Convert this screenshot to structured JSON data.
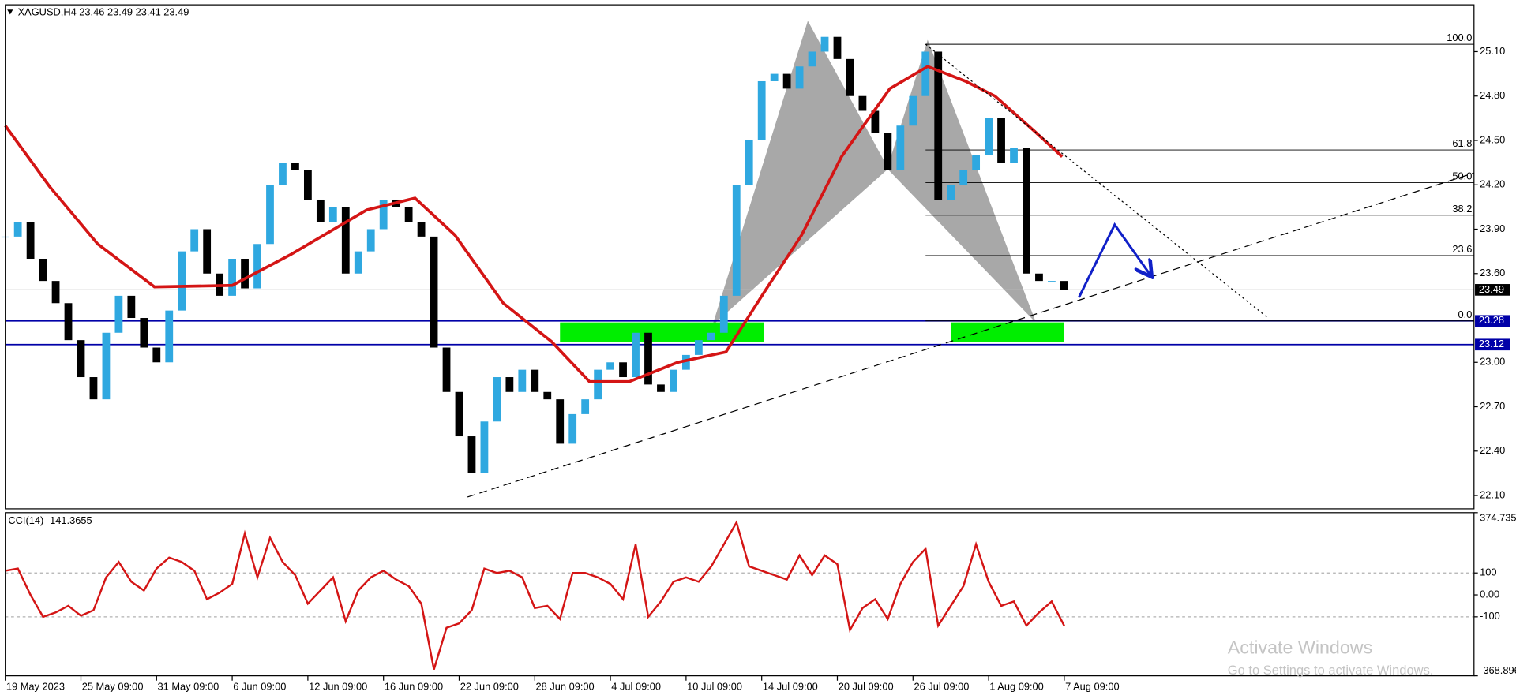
{
  "chart_data": [
    {
      "type": "candlestick",
      "title": "XAGUSD,H4  23.46 23.49 23.41 23.49",
      "x": [
        0,
        6,
        12,
        18,
        24,
        30,
        36,
        42,
        48,
        54,
        60,
        66,
        72,
        78,
        84,
        90,
        96,
        102,
        108,
        114,
        120,
        126,
        132,
        138,
        144,
        150,
        156,
        162,
        168,
        174,
        180,
        186,
        192,
        198,
        204,
        210,
        216,
        222,
        228,
        234,
        240,
        246,
        252,
        258,
        264,
        270,
        276,
        282,
        288,
        294,
        300,
        306,
        312,
        318,
        324,
        330,
        336,
        342,
        348,
        354,
        360,
        366,
        372,
        378,
        384,
        390,
        396,
        402,
        408,
        414,
        420,
        426,
        432,
        438,
        444,
        450,
        456,
        462,
        468,
        474,
        480,
        486,
        492,
        498,
        504
      ],
      "values": [
        23.85,
        23.95,
        23.7,
        23.55,
        23.4,
        23.15,
        22.9,
        22.75,
        23.2,
        23.45,
        23.3,
        23.1,
        23.0,
        23.35,
        23.75,
        23.9,
        23.6,
        23.45,
        23.7,
        23.5,
        23.8,
        24.2,
        24.35,
        24.3,
        24.1,
        23.95,
        24.05,
        23.6,
        23.75,
        23.9,
        24.1,
        24.05,
        23.95,
        23.85,
        23.1,
        22.8,
        22.5,
        22.25,
        22.6,
        22.9,
        22.8,
        22.95,
        22.8,
        22.75,
        22.45,
        22.65,
        22.75,
        22.95,
        23.0,
        22.9,
        23.2,
        22.85,
        22.8,
        22.95,
        23.05,
        23.15,
        23.2,
        23.45,
        24.2,
        24.5,
        24.9,
        24.95,
        24.85,
        25.0,
        25.1,
        25.2,
        25.05,
        24.8,
        24.7,
        24.55,
        24.3,
        24.6,
        24.8,
        25.1,
        24.1,
        24.2,
        24.3,
        24.4,
        24.65,
        24.35,
        24.45,
        23.6,
        23.55,
        23.55,
        23.49
      ],
      "up_color": "#2fa8e0",
      "down_color": "#000000",
      "xlim": [
        0,
        699
      ],
      "xticks": [
        {
          "value": 0,
          "label": "19 May 2023"
        },
        {
          "value": 36,
          "label": "25 May 09:00"
        },
        {
          "value": 72,
          "label": "31 May 09:00"
        },
        {
          "value": 108,
          "label": "6 Jun 09:00"
        },
        {
          "value": 144,
          "label": "12 Jun 09:00"
        },
        {
          "value": 180,
          "label": "16 Jun 09:00"
        },
        {
          "value": 216,
          "label": "22 Jun 09:00"
        },
        {
          "value": 252,
          "label": "28 Jun 09:00"
        },
        {
          "value": 288,
          "label": "4 Jul 09:00"
        },
        {
          "value": 324,
          "label": "10 Jul 09:00"
        },
        {
          "value": 360,
          "label": "14 Jul 09:00"
        },
        {
          "value": 396,
          "label": "20 Jul 09:00"
        },
        {
          "value": 432,
          "label": "26 Jul 09:00"
        },
        {
          "value": 468,
          "label": "1 Aug 09:00"
        },
        {
          "value": 504,
          "label": "7 Aug 09:00"
        }
      ],
      "ylim": [
        22.01,
        25.41
      ],
      "yticks": [
        {
          "value": 25.1,
          "label": "25.10"
        },
        {
          "value": 24.8,
          "label": "24.80"
        },
        {
          "value": 24.5,
          "label": "24.50"
        },
        {
          "value": 24.2,
          "label": "24.20"
        },
        {
          "value": 23.9,
          "label": "23.90"
        },
        {
          "value": 23.6,
          "label": "23.60"
        },
        {
          "value": 23.0,
          "label": "23.00"
        },
        {
          "value": 22.7,
          "label": "22.70"
        },
        {
          "value": 22.4,
          "label": "22.40"
        },
        {
          "value": 22.1,
          "label": "22.10"
        }
      ],
      "ma": {
        "color": "#d41515",
        "x": [
          0,
          21,
          44,
          71,
          108,
          136,
          172,
          195,
          214,
          237,
          260,
          278,
          297,
          320,
          343,
          361,
          379,
          398,
          421,
          439,
          457,
          471,
          490,
          503
        ],
        "values": [
          24.6,
          24.19,
          23.8,
          23.51,
          23.52,
          23.73,
          24.03,
          24.11,
          23.86,
          23.4,
          23.14,
          22.87,
          22.87,
          23.0,
          23.07,
          23.47,
          23.86,
          24.39,
          24.85,
          25.0,
          24.9,
          24.8,
          24.56,
          24.39
        ]
      },
      "hlines": [
        {
          "value": 23.28,
          "label": "23.28",
          "color": "#0000a8"
        },
        {
          "value": 23.12,
          "label": "23.12",
          "color": "#0000a8"
        }
      ],
      "last_price": {
        "value": 23.49,
        "label": "23.49"
      },
      "zones": [
        {
          "x": [
            264,
            361
          ],
          "y": [
            23.14,
            23.27
          ],
          "color": "#00ee00"
        },
        {
          "x": [
            450,
            504
          ],
          "y": [
            23.14,
            23.27
          ],
          "color": "#00ee00"
        }
      ],
      "pattern": {
        "color": "#a8a8a8",
        "x": [
          337,
          382,
          420,
          439,
          490
        ],
        "values": [
          23.26,
          25.3,
          24.31,
          25.17,
          23.28
        ]
      },
      "fib": {
        "high": 25.15,
        "low": 23.28,
        "x_start": 438,
        "levels": [
          {
            "value": 100,
            "label": "100.0"
          },
          {
            "value": 61.8,
            "label": "61.8"
          },
          {
            "value": 50,
            "label": "50.0"
          },
          {
            "value": 38.2,
            "label": "38.2"
          },
          {
            "value": 23.6,
            "label": "23.6"
          },
          {
            "value": 0,
            "label": "0.0"
          }
        ]
      },
      "trendlines": [
        {
          "x": [
            220,
            699
          ],
          "values": [
            22.09,
            24.28
          ],
          "style": "dashed"
        },
        {
          "x": [
            438,
            601
          ],
          "values": [
            25.15,
            23.3
          ],
          "style": "dotted"
        }
      ],
      "arrow": {
        "color": "#1020c8",
        "x": [
          511,
          528,
          545
        ],
        "values": [
          23.44,
          23.93,
          23.59
        ]
      }
    },
    {
      "type": "line",
      "title": "CCI(14) -141.3655",
      "color": "#d41515",
      "x": [
        0,
        6,
        12,
        18,
        24,
        30,
        36,
        42,
        48,
        54,
        60,
        66,
        72,
        78,
        84,
        90,
        96,
        102,
        108,
        114,
        120,
        126,
        132,
        138,
        144,
        150,
        156,
        162,
        168,
        174,
        180,
        186,
        192,
        198,
        204,
        210,
        216,
        222,
        228,
        234,
        240,
        246,
        252,
        258,
        264,
        270,
        276,
        282,
        288,
        294,
        300,
        306,
        312,
        318,
        324,
        330,
        336,
        342,
        348,
        354,
        360,
        366,
        372,
        378,
        384,
        390,
        396,
        402,
        408,
        414,
        420,
        426,
        432,
        438,
        444,
        450,
        456,
        462,
        468,
        474,
        480,
        486,
        492,
        498,
        504
      ],
      "values": [
        110,
        120,
        0,
        -100,
        -80,
        -50,
        -95,
        -70,
        80,
        150,
        60,
        20,
        120,
        170,
        150,
        110,
        -20,
        10,
        50,
        280,
        80,
        260,
        150,
        90,
        -40,
        20,
        80,
        -120,
        20,
        80,
        110,
        70,
        40,
        -40,
        -340,
        -150,
        -130,
        -70,
        120,
        100,
        110,
        80,
        -60,
        -50,
        -110,
        100,
        100,
        80,
        50,
        -20,
        230,
        -100,
        -30,
        60,
        80,
        60,
        130,
        230,
        330,
        130,
        110,
        90,
        70,
        180,
        90,
        180,
        140,
        -160,
        -60,
        -20,
        -110,
        50,
        150,
        210,
        -140,
        -50,
        40,
        230,
        60,
        -50,
        -30,
        -140,
        -80,
        -30,
        -141.3655
      ],
      "ylim": [
        -368.896,
        374.735
      ],
      "yticks": [
        374.735,
        100,
        {
          "value": 0,
          "label": "0.00"
        },
        -100,
        -368.896
      ],
      "dashed_levels": [
        100,
        -100
      ]
    }
  ],
  "watermark": {
    "title": "Activate Windows",
    "subtitle": "Go to Settings to activate Windows."
  }
}
